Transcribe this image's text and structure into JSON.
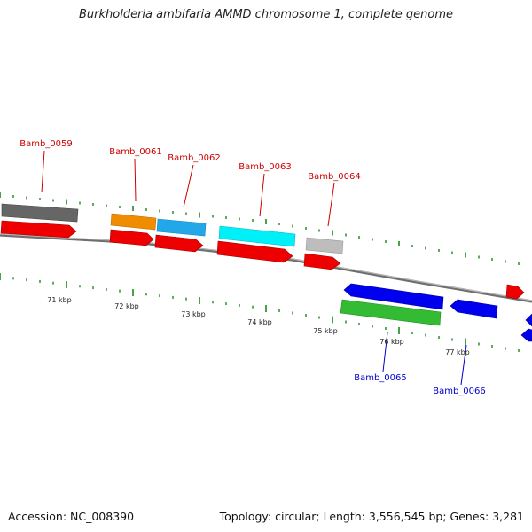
{
  "title": "Burkholderia ambifaria AMMD chromosome 1, complete genome",
  "footer": {
    "accession": "Accession: NC_008390",
    "summary": "Topology: circular; Length: 3,556,545 bp; Genes: 3,281"
  },
  "colors": {
    "upper_label": "#cc0000",
    "lower_label": "#0000cc",
    "tick": "#1a8a1a",
    "backbone": "#777777"
  },
  "scale_labels": [
    "71 kbp",
    "72 kbp",
    "73 kbp",
    "74 kbp",
    "75 kbp",
    "76 kbp",
    "77 kbp"
  ],
  "gene_labels": [
    {
      "id": "Bamb_0059",
      "strand": "forward"
    },
    {
      "id": "Bamb_0061",
      "strand": "forward"
    },
    {
      "id": "Bamb_0062",
      "strand": "forward"
    },
    {
      "id": "Bamb_0063",
      "strand": "forward"
    },
    {
      "id": "Bamb_0064",
      "strand": "forward"
    },
    {
      "id": "Bamb_0065",
      "strand": "reverse"
    },
    {
      "id": "Bamb_0066",
      "strand": "reverse"
    }
  ],
  "features": [
    {
      "name": "feature-grey-dark",
      "color": "#666666",
      "shape": "box"
    },
    {
      "name": "feature-orange",
      "color": "#f08c00",
      "shape": "box"
    },
    {
      "name": "feature-sky-blue",
      "color": "#22a8e8",
      "shape": "box"
    },
    {
      "name": "feature-cyan",
      "color": "#00f0f8",
      "shape": "box"
    },
    {
      "name": "feature-grey-light",
      "color": "#bdbdbd",
      "shape": "box"
    },
    {
      "name": "cds-forward-1",
      "color": "#ee0000",
      "shape": "arrow-right"
    },
    {
      "name": "cds-forward-2",
      "color": "#ee0000",
      "shape": "arrow-right"
    },
    {
      "name": "cds-forward-3",
      "color": "#ee0000",
      "shape": "arrow-right"
    },
    {
      "name": "cds-forward-4",
      "color": "#ee0000",
      "shape": "arrow-right"
    },
    {
      "name": "cds-forward-5",
      "color": "#ee0000",
      "shape": "arrow-right"
    },
    {
      "name": "cds-forward-6",
      "color": "#ee0000",
      "shape": "arrow-right"
    },
    {
      "name": "cds-reverse-1",
      "color": "#0000ee",
      "shape": "arrow-left"
    },
    {
      "name": "cds-reverse-2",
      "color": "#0000ee",
      "shape": "arrow-left"
    },
    {
      "name": "feature-green",
      "color": "#33bb33",
      "shape": "box"
    },
    {
      "name": "cds-reverse-edge",
      "color": "#0000ee",
      "shape": "arrow-left"
    }
  ]
}
